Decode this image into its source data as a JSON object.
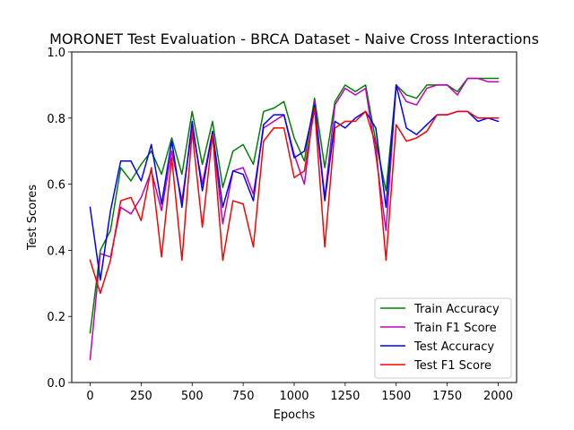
{
  "chart_data": {
    "type": "line",
    "title": "MORONET Test Evaluation - BRCA Dataset - Naive Cross Interactions",
    "xlabel": "Epochs",
    "ylabel": "Test Scores",
    "xlim": [
      -90,
      2090
    ],
    "ylim": [
      0.0,
      1.0
    ],
    "xticks": [
      0,
      250,
      500,
      750,
      1000,
      1250,
      1500,
      1750,
      2000
    ],
    "yticks": [
      0.0,
      0.2,
      0.4,
      0.6,
      0.8,
      1.0
    ],
    "xtick_labels": [
      "0",
      "250",
      "500",
      "750",
      "1000",
      "1250",
      "1500",
      "1750",
      "2000"
    ],
    "ytick_labels": [
      "0.0",
      "0.2",
      "0.4",
      "0.6",
      "0.8",
      "1.0"
    ],
    "grid": false,
    "legend_position": "lower-right",
    "x": [
      0,
      50,
      100,
      150,
      200,
      250,
      300,
      350,
      400,
      450,
      500,
      550,
      600,
      650,
      700,
      750,
      800,
      850,
      900,
      950,
      1000,
      1050,
      1100,
      1150,
      1200,
      1250,
      1300,
      1350,
      1400,
      1450,
      1500,
      1550,
      1600,
      1650,
      1700,
      1750,
      1800,
      1850,
      1900,
      1950,
      2000
    ],
    "series": [
      {
        "name": "Train Accuracy",
        "color": "#008000",
        "values": [
          0.15,
          0.4,
          0.46,
          0.65,
          0.61,
          0.66,
          0.7,
          0.63,
          0.74,
          0.63,
          0.82,
          0.66,
          0.79,
          0.59,
          0.7,
          0.72,
          0.66,
          0.82,
          0.83,
          0.85,
          0.74,
          0.67,
          0.86,
          0.65,
          0.85,
          0.9,
          0.88,
          0.9,
          0.73,
          0.58,
          0.9,
          0.87,
          0.86,
          0.9,
          0.9,
          0.9,
          0.88,
          0.92,
          0.92,
          0.92,
          0.92
        ]
      },
      {
        "name": "Train F1 Score",
        "color": "#bf00bf",
        "values": [
          0.07,
          0.39,
          0.38,
          0.53,
          0.51,
          0.56,
          0.64,
          0.52,
          0.7,
          0.55,
          0.77,
          0.6,
          0.76,
          0.48,
          0.64,
          0.65,
          0.57,
          0.77,
          0.79,
          0.81,
          0.69,
          0.6,
          0.85,
          0.56,
          0.84,
          0.89,
          0.87,
          0.89,
          0.69,
          0.46,
          0.9,
          0.85,
          0.84,
          0.89,
          0.9,
          0.9,
          0.87,
          0.92,
          0.92,
          0.91,
          0.91
        ]
      },
      {
        "name": "Test Accuracy",
        "color": "#0000ff",
        "values": [
          0.53,
          0.31,
          0.52,
          0.67,
          0.67,
          0.61,
          0.72,
          0.54,
          0.73,
          0.53,
          0.79,
          0.58,
          0.76,
          0.53,
          0.64,
          0.63,
          0.55,
          0.78,
          0.81,
          0.81,
          0.68,
          0.7,
          0.84,
          0.55,
          0.79,
          0.77,
          0.8,
          0.82,
          0.77,
          0.53,
          0.9,
          0.77,
          0.75,
          0.78,
          0.81,
          0.81,
          0.82,
          0.82,
          0.79,
          0.8,
          0.79
        ]
      },
      {
        "name": "Test F1 Score",
        "color": "#ff0000",
        "values": [
          0.37,
          0.27,
          0.37,
          0.55,
          0.56,
          0.49,
          0.65,
          0.38,
          0.68,
          0.37,
          0.76,
          0.47,
          0.75,
          0.37,
          0.55,
          0.54,
          0.41,
          0.73,
          0.77,
          0.77,
          0.62,
          0.64,
          0.83,
          0.41,
          0.77,
          0.79,
          0.79,
          0.82,
          0.72,
          0.37,
          0.78,
          0.73,
          0.74,
          0.76,
          0.81,
          0.81,
          0.82,
          0.82,
          0.8,
          0.8,
          0.8
        ]
      }
    ]
  }
}
